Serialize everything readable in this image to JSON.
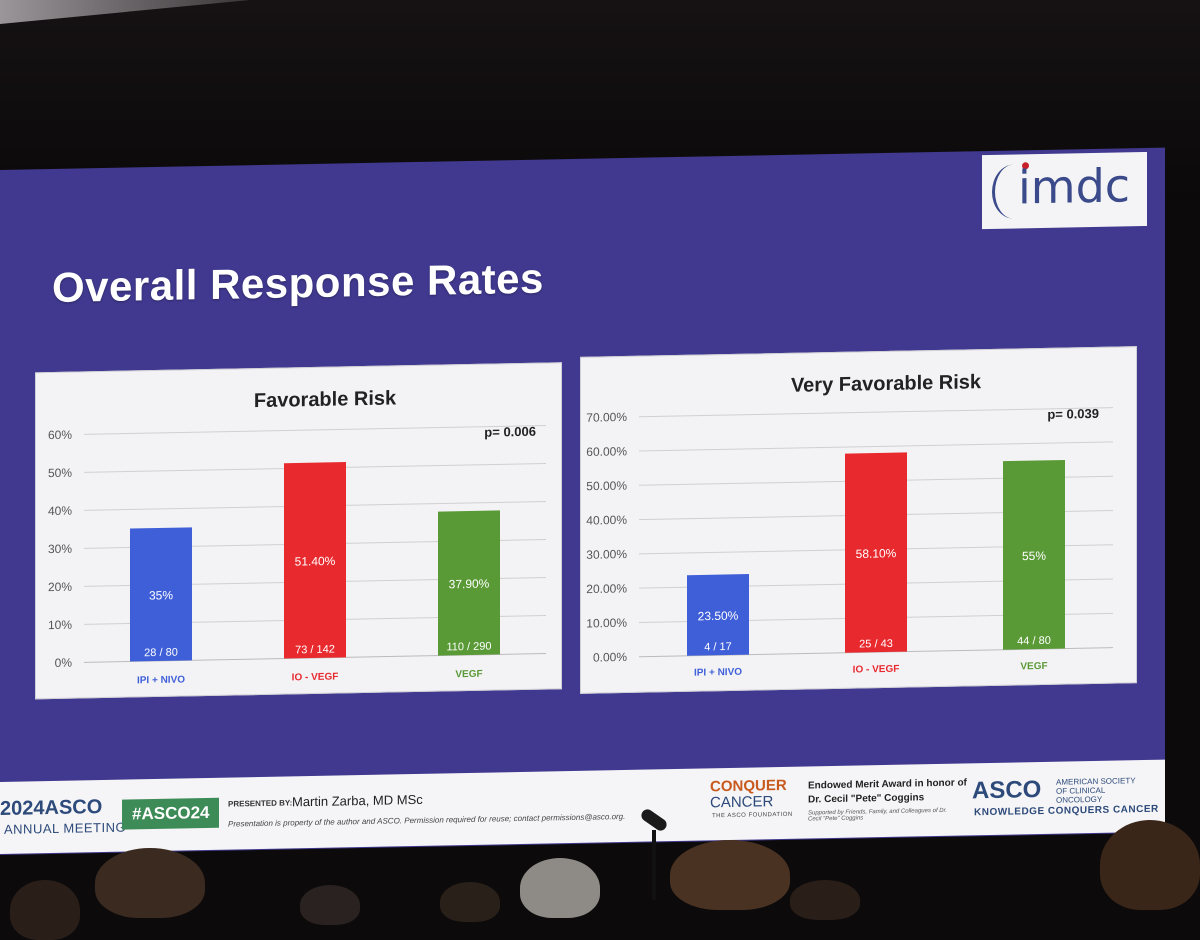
{
  "slide": {
    "title": "Overall Response Rates",
    "logo_text": "imdc"
  },
  "colors": {
    "slide_bg": "#40398f",
    "ipi_nivo": "#3f5fd8",
    "io_vegf": "#e82a2f",
    "vegf": "#5a9a36"
  },
  "chart_data": [
    {
      "type": "bar",
      "title": "Favorable Risk",
      "annotation": "p= 0.006",
      "categories": [
        "IPI + NIVO",
        "IO - VEGF",
        "VEGF"
      ],
      "values": [
        35,
        51.4,
        37.9
      ],
      "value_labels": [
        "35%",
        "51.40%",
        "37.90%"
      ],
      "count_labels": [
        "28 / 80",
        "73 / 142",
        "110 / 290"
      ],
      "ylim": [
        0,
        60
      ],
      "yticks": [
        "0%",
        "10%",
        "20%",
        "30%",
        "40%",
        "50%",
        "60%"
      ],
      "grid": true
    },
    {
      "type": "bar",
      "title": "Very Favorable Risk",
      "annotation": "p= 0.039",
      "categories": [
        "IPI + NIVO",
        "IO - VEGF",
        "VEGF"
      ],
      "values": [
        23.5,
        58.1,
        55
      ],
      "value_labels": [
        "23.50%",
        "58.10%",
        "55%"
      ],
      "count_labels": [
        "4 / 17",
        "25 / 43",
        "44 / 80"
      ],
      "ylim": [
        0,
        70
      ],
      "yticks": [
        "0.00%",
        "10.00%",
        "20.00%",
        "30.00%",
        "40.00%",
        "50.00%",
        "60.00%",
        "70.00%"
      ],
      "grid": true
    }
  ],
  "footer": {
    "year": "2024",
    "brand": "ASCO",
    "meeting": "ANNUAL MEETING",
    "hashtag": "#ASCO24",
    "presented_by_label": "PRESENTED BY:",
    "presenter": "Martin Zarba, MD MSc",
    "disclaimer": "Presentation is property of the author and ASCO. Permission required for reuse; contact permissions@asco.org.",
    "conquer_line1": "CONQUER",
    "conquer_line2": "CANCER",
    "conquer_line3": "THE ASCO FOUNDATION",
    "award_line1": "Endowed Merit Award in honor of",
    "award_line2": "Dr. Cecil \"Pete\" Coggins",
    "award_line3": "Supported by Friends, Family, and Colleagues of Dr. Cecil \"Pete\" Coggins",
    "asco_logo": "ASCO",
    "asco_full": "AMERICAN SOCIETY OF CLINICAL ONCOLOGY",
    "tagline": "KNOWLEDGE CONQUERS CANCER"
  }
}
